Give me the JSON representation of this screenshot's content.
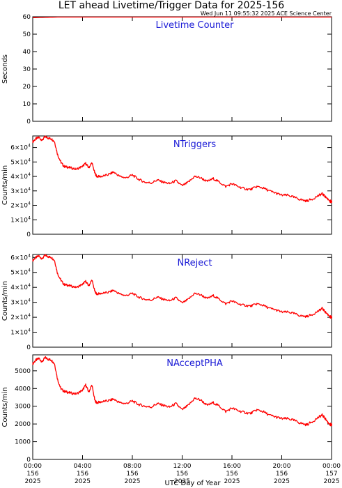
{
  "header": {
    "title": "LET ahead Livetime/Trigger Data for 2025-156",
    "timestamp": "Wed Jun 11 09:55:32 2025 ACE Science Center"
  },
  "colors": {
    "series": "#ff0000",
    "panel_title": "#1a1ad6",
    "axes": "#000000"
  },
  "chart_data": [
    {
      "type": "line",
      "title": "Livetime Counter",
      "ylabel": "Seconds",
      "ylim": [
        0,
        60
      ],
      "yticks": [
        0,
        10,
        20,
        30,
        40,
        50,
        60
      ],
      "ytick_labels": [
        "0",
        "10",
        "20",
        "30",
        "40",
        "50",
        "60"
      ],
      "xlim": [
        0,
        24
      ],
      "series": [
        {
          "x": [
            0,
            2,
            4,
            6,
            8,
            10,
            12,
            14,
            16,
            18,
            20,
            22,
            24
          ],
          "values": [
            59.5,
            59.8,
            59.8,
            59.8,
            59.8,
            59.8,
            59.8,
            59.8,
            59.8,
            59.8,
            59.8,
            59.8,
            59.8
          ]
        }
      ]
    },
    {
      "type": "line",
      "title": "NTriggers",
      "ylabel": "Counts/min",
      "ylim": [
        0,
        68000
      ],
      "yticks": [
        0,
        10000,
        20000,
        30000,
        40000,
        50000,
        60000
      ],
      "ytick_labels": [
        {
          "m": "0",
          "e": ""
        },
        {
          "m": "1×10",
          "e": "4"
        },
        {
          "m": "2×10",
          "e": "4"
        },
        {
          "m": "3×10",
          "e": "4"
        },
        {
          "m": "4×10",
          "e": "4"
        },
        {
          "m": "5×10",
          "e": "4"
        },
        {
          "m": "6×10",
          "e": "4"
        }
      ],
      "xlim": [
        0,
        24
      ],
      "series": [
        {
          "x": [
            0,
            0.25,
            0.5,
            0.75,
            1.0,
            1.25,
            1.5,
            1.75,
            2.0,
            2.25,
            2.5,
            2.75,
            3.0,
            3.5,
            4.0,
            4.25,
            4.5,
            4.75,
            5.0,
            5.15,
            5.5,
            6.0,
            6.5,
            7.0,
            7.5,
            8.0,
            8.5,
            9.0,
            9.5,
            10.0,
            10.5,
            11.0,
            11.5,
            12.0,
            12.5,
            13.0,
            13.5,
            14.0,
            14.5,
            15.0,
            15.5,
            16.0,
            16.5,
            17.0,
            17.5,
            18.0,
            18.5,
            19.0,
            19.5,
            20.0,
            20.5,
            21.0,
            21.5,
            22.0,
            22.5,
            23.0,
            23.25,
            23.5,
            23.75,
            24.0
          ],
          "values": [
            64000,
            66000,
            67000,
            65000,
            67500,
            66500,
            66000,
            64000,
            55000,
            50000,
            47000,
            46500,
            46000,
            45000,
            47000,
            49000,
            46000,
            49500,
            42000,
            40000,
            40000,
            41000,
            43000,
            40000,
            39000,
            41000,
            38000,
            36000,
            35500,
            37500,
            36000,
            35000,
            37000,
            33500,
            36000,
            40000,
            39000,
            36500,
            38500,
            36000,
            33000,
            35000,
            33000,
            31500,
            31000,
            33000,
            32000,
            30000,
            28500,
            27000,
            27000,
            25500,
            24000,
            23000,
            24500,
            27000,
            28000,
            26000,
            24000,
            22500
          ]
        }
      ]
    },
    {
      "type": "line",
      "title": "NReject",
      "ylabel": "Counts/min",
      "ylim": [
        0,
        62000
      ],
      "yticks": [
        0,
        10000,
        20000,
        30000,
        40000,
        50000,
        60000
      ],
      "ytick_labels": [
        {
          "m": "0",
          "e": ""
        },
        {
          "m": "1×10",
          "e": "4"
        },
        {
          "m": "2×10",
          "e": "4"
        },
        {
          "m": "3×10",
          "e": "4"
        },
        {
          "m": "4×10",
          "e": "4"
        },
        {
          "m": "5×10",
          "e": "4"
        },
        {
          "m": "6×10",
          "e": "4"
        }
      ],
      "xlim": [
        0,
        24
      ],
      "series": [
        {
          "x": [
            0,
            0.25,
            0.5,
            0.75,
            1.0,
            1.25,
            1.5,
            1.75,
            2.0,
            2.25,
            2.5,
            2.75,
            3.0,
            3.5,
            4.0,
            4.25,
            4.5,
            4.75,
            5.0,
            5.15,
            5.5,
            6.0,
            6.5,
            7.0,
            7.5,
            8.0,
            8.5,
            9.0,
            9.5,
            10.0,
            10.5,
            11.0,
            11.5,
            12.0,
            12.5,
            13.0,
            13.5,
            14.0,
            14.5,
            15.0,
            15.5,
            16.0,
            16.5,
            17.0,
            17.5,
            18.0,
            18.5,
            19.0,
            19.5,
            20.0,
            20.5,
            21.0,
            21.5,
            22.0,
            22.5,
            23.0,
            23.25,
            23.5,
            23.75,
            24.0
          ],
          "values": [
            58000,
            60000,
            61000,
            59000,
            61500,
            60500,
            60000,
            58000,
            49000,
            45000,
            42000,
            41500,
            41000,
            40000,
            42000,
            44000,
            41000,
            45000,
            37000,
            35500,
            36000,
            36500,
            38000,
            35500,
            34500,
            36000,
            33500,
            32000,
            31500,
            33500,
            32000,
            31000,
            33000,
            29500,
            32000,
            36000,
            35000,
            32500,
            34500,
            32000,
            29000,
            31000,
            29000,
            28000,
            27500,
            29000,
            28000,
            26000,
            25000,
            23500,
            23500,
            22500,
            21000,
            20500,
            22000,
            24500,
            26000,
            23500,
            21500,
            20000
          ]
        }
      ]
    },
    {
      "type": "line",
      "title": "NAcceptPHA",
      "ylabel": "Counts/min",
      "ylim": [
        0,
        5900
      ],
      "yticks": [
        0,
        1000,
        2000,
        3000,
        4000,
        5000
      ],
      "ytick_labels": [
        "0",
        "1000",
        "2000",
        "3000",
        "4000",
        "5000"
      ],
      "xlim": [
        0,
        24
      ],
      "xticks": [
        0,
        4,
        8,
        12,
        16,
        20,
        24
      ],
      "xtick_labels": [
        [
          "00:00",
          "156",
          "2025"
        ],
        [
          "04:00",
          "156",
          "2025"
        ],
        [
          "08:00",
          "156",
          "2025"
        ],
        [
          "12:00",
          "156",
          "2025"
        ],
        [
          "16:00",
          "156",
          "2025"
        ],
        [
          "20:00",
          "156",
          "2025"
        ],
        [
          "00:00",
          "157",
          "2025"
        ]
      ],
      "xlabel": "UTC Day of Year",
      "series": [
        {
          "x": [
            0,
            0.25,
            0.5,
            0.75,
            1.0,
            1.25,
            1.5,
            1.75,
            2.0,
            2.25,
            2.5,
            2.75,
            3.0,
            3.5,
            4.0,
            4.25,
            4.5,
            4.75,
            5.0,
            5.15,
            5.5,
            6.0,
            6.5,
            7.0,
            7.5,
            8.0,
            8.5,
            9.0,
            9.5,
            10.0,
            10.5,
            11.0,
            11.5,
            12.0,
            12.5,
            13.0,
            13.5,
            14.0,
            14.5,
            15.0,
            15.5,
            16.0,
            16.5,
            17.0,
            17.5,
            18.0,
            18.5,
            19.0,
            19.5,
            20.0,
            20.5,
            21.0,
            21.5,
            22.0,
            22.5,
            23.0,
            23.25,
            23.5,
            23.75,
            24.0
          ],
          "values": [
            5400,
            5600,
            5700,
            5500,
            5750,
            5650,
            5600,
            5400,
            4500,
            4000,
            3850,
            3800,
            3750,
            3700,
            3900,
            4200,
            3800,
            4200,
            3300,
            3200,
            3250,
            3300,
            3400,
            3200,
            3150,
            3300,
            3100,
            3000,
            2950,
            3150,
            3050,
            2950,
            3150,
            2800,
            3050,
            3450,
            3350,
            3050,
            3200,
            3000,
            2700,
            2900,
            2750,
            2650,
            2600,
            2800,
            2700,
            2500,
            2400,
            2300,
            2300,
            2200,
            2050,
            1950,
            2150,
            2400,
            2500,
            2300,
            2050,
            1950
          ]
        }
      ]
    }
  ]
}
